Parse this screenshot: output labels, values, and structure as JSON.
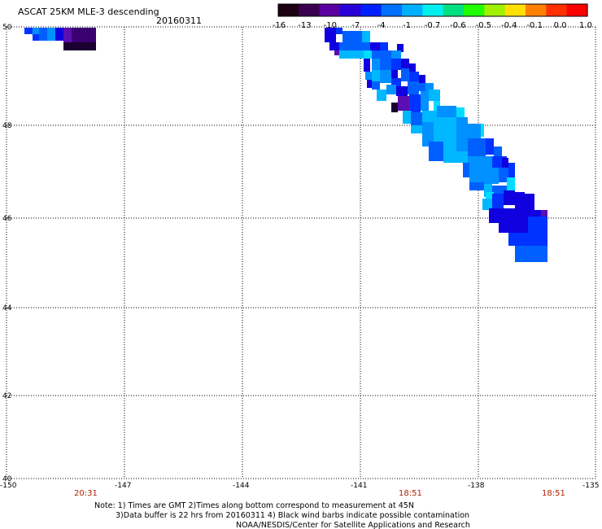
{
  "title": "ASCAT 25KM MLE-3 descending",
  "date": "20160311",
  "colorbar": {
    "labels": [
      "-16",
      "-13",
      "-10",
      "-7",
      "-4",
      "-1",
      "-0.7",
      "-0.6",
      "-0.5",
      "-0.4",
      "-0.1",
      "0.0",
      "1.0"
    ],
    "colors": [
      "#1a0010",
      "#3a0050",
      "#5a00a0",
      "#2800d8",
      "#0020ff",
      "#0070ff",
      "#00b0ff",
      "#00f0f0",
      "#00e080",
      "#20ff00",
      "#a0f000",
      "#ffe000",
      "#ff8000",
      "#ff3000",
      "#ff0000"
    ]
  },
  "axes": {
    "lon_labels": [
      "-150",
      "-147",
      "-144",
      "-141",
      "-138",
      "-135"
    ],
    "lat_labels": [
      "50",
      "48",
      "46",
      "44",
      "42",
      "40"
    ]
  },
  "times": [
    "20:31",
    "18:51",
    "18:51"
  ],
  "notes": [
    "Note: 1) Times are GMT 2)Times along bottom correspond to measurement at 45N",
    "3)Data buffer is 22 hrs from 20160311 4) Black wind barbs indicate possible contamination",
    "NOAA/NESDIS/Center for Satellite Applications and Research"
  ],
  "swath_palette": {
    "deep": "#1a0030",
    "purple": "#3a0070",
    "violet": "#5a10b0",
    "navy": "#1000e0",
    "blue": "#0033ff",
    "mid": "#0060ff",
    "sky": "#0090ff",
    "light": "#00b8ff",
    "cyan": "#00ddff"
  }
}
